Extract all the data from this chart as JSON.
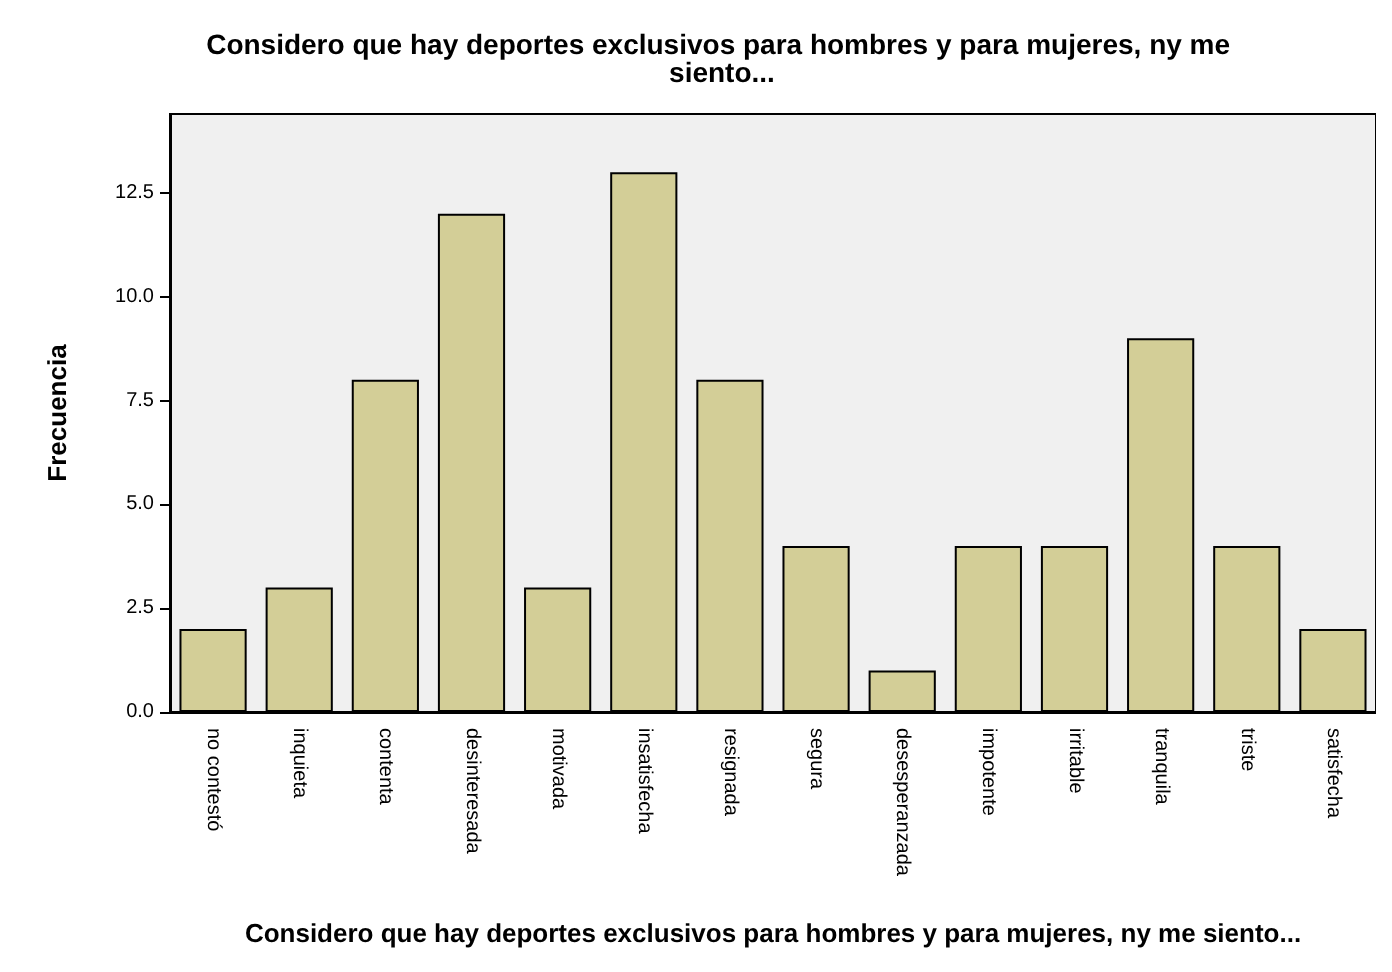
{
  "chart_data": {
    "type": "bar",
    "title": "Considero que hay deportes exclusivos para hombres y para mujeres, ny me siento...",
    "xlabel": "Considero que hay deportes exclusivos para hombres y para mujeres, ny me siento...",
    "ylabel": "Frecuencia",
    "categories": [
      "no contestó",
      "inquieta",
      "contenta",
      "desinteresada",
      "motivada",
      "insatisfecha",
      "resignada",
      "segura",
      "desesperanzada",
      "impotente",
      "irritable",
      "tranquila",
      "triste",
      "satisfecha"
    ],
    "values": [
      2,
      3,
      8,
      12,
      3,
      13,
      8,
      4,
      1,
      4,
      4,
      9,
      4,
      2
    ],
    "color": "#d3ce97",
    "ylim": [
      0,
      14.4
    ],
    "yticks": [
      {
        "value": 0,
        "label": "0.0"
      },
      {
        "value": 2.5,
        "label": "2.5"
      },
      {
        "value": 5,
        "label": "5.0"
      },
      {
        "value": 7.5,
        "label": "7.5"
      },
      {
        "value": 10,
        "label": "10.0"
      },
      {
        "value": 12.5,
        "label": "12.5"
      }
    ],
    "grid": false
  }
}
